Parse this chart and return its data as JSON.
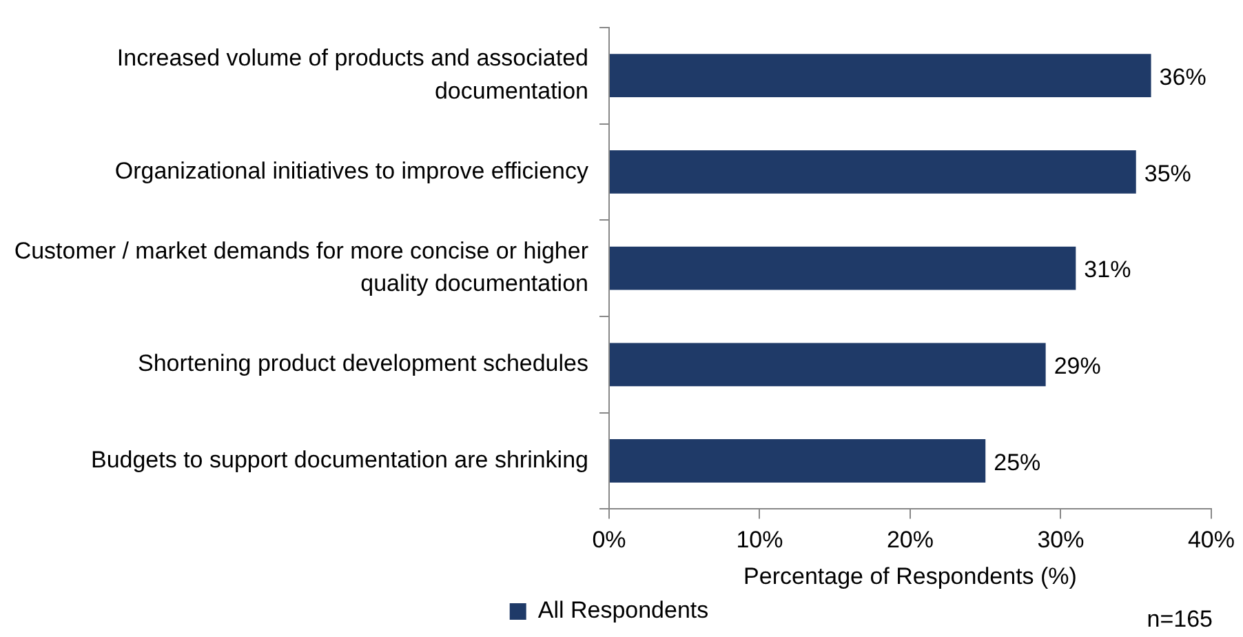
{
  "chart_data": {
    "type": "bar",
    "orientation": "horizontal",
    "xlabel": "Percentage of Respondents (%)",
    "categories": [
      "Increased volume of products and associated documentation",
      "Organizational initiatives to improve efficiency",
      "Customer / market demands for more concise or higher quality documentation",
      "Shortening product development schedules",
      "Budgets to support documentation are shrinking"
    ],
    "series": [
      {
        "name": "All Respondents",
        "color": "#1f3a68",
        "values": [
          36,
          35,
          31,
          29,
          25
        ],
        "value_labels": [
          "36%",
          "35%",
          "31%",
          "29%",
          "25%"
        ]
      }
    ],
    "xlim": [
      0,
      40
    ],
    "xticks": [
      {
        "value": 0,
        "label": "0%"
      },
      {
        "value": 10,
        "label": "10%"
      },
      {
        "value": 20,
        "label": "20%"
      },
      {
        "value": 30,
        "label": "30%"
      },
      {
        "value": 40,
        "label": "40%"
      }
    ],
    "grid": false,
    "legend": "bottom",
    "annotations": [
      "n=165"
    ]
  }
}
